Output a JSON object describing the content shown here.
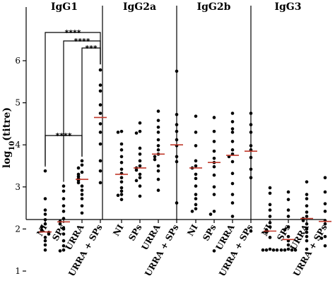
{
  "chart_data": {
    "type": "scatter",
    "ylabel": "log10(titre)",
    "ylabel_main": "log",
    "ylabel_sub": "10",
    "ylabel_rest": "(titre)",
    "ylim": [
      1,
      6
    ],
    "yticks": [
      "1",
      "2",
      "3",
      "4",
      "5",
      "6"
    ],
    "median_color": "#c0392b",
    "panels": [
      {
        "title": "IgG1",
        "categories": [
          "NI",
          "SPs",
          "URRA",
          "URRA + SPs"
        ],
        "series": [
          {
            "values": [
              3.38,
              2.72,
              2.45,
              2.35,
              2.22,
              2.12,
              2.05,
              1.98,
              1.95,
              1.92,
              1.88,
              1.8,
              1.72,
              1.62,
              1.5
            ],
            "median": 1.93
          },
          {
            "values": [
              3.02,
              2.9,
              2.72,
              2.55,
              2.42,
              2.25,
              2.18,
              2.12,
              2.0,
              1.88,
              1.72,
              1.6,
              1.5,
              1.48
            ],
            "median": 2.17
          },
          {
            "values": [
              3.62,
              3.52,
              3.45,
              3.35,
              3.3,
              3.25,
              3.2,
              3.15,
              3.1,
              3.02,
              2.92,
              2.82,
              2.72,
              2.55,
              2.38
            ],
            "median": 3.18
          },
          {
            "values": [
              5.78,
              5.42,
              5.28,
              4.95,
              4.75,
              4.5,
              4.3,
              4.02,
              3.62,
              3.38,
              3.1
            ],
            "median": 4.65
          }
        ],
        "comparisons": [
          {
            "from": 0,
            "to": 3,
            "label": "****"
          },
          {
            "from": 1,
            "to": 3,
            "label": "****"
          },
          {
            "from": 2,
            "to": 3,
            "label": "***"
          },
          {
            "from": 0,
            "to": 2,
            "label": "****"
          }
        ]
      },
      {
        "title": "IgG2a",
        "categories": [
          "NI",
          "SPs",
          "URRA",
          "URRA + SPs"
        ],
        "series": [
          {
            "values": [
              4.32,
              4.3,
              4.02,
              3.88,
              3.72,
              3.58,
              3.42,
              3.32,
              3.22,
              3.12,
              2.98,
              2.9,
              2.82,
              2.8,
              2.7
            ],
            "median": 3.3
          },
          {
            "values": [
              4.52,
              4.32,
              4.28,
              3.92,
              3.78,
              3.62,
              3.5,
              3.45,
              3.4,
              3.3,
              3.22,
              3.15,
              3.02,
              2.78
            ],
            "median": 3.45
          },
          {
            "values": [
              4.8,
              4.58,
              4.42,
              4.3,
              4.12,
              3.98,
              3.88,
              3.78,
              3.72,
              3.65,
              3.5,
              3.38,
              3.18,
              2.92
            ],
            "median": 3.78
          },
          {
            "values": [
              5.75,
              4.72,
              4.48,
              4.32,
              4.12,
              3.98,
              3.72,
              3.6,
              2.62
            ],
            "median": 4.0
          }
        ]
      },
      {
        "title": "IgG2b",
        "categories": [
          "NI",
          "SPs",
          "URRA",
          "URRA + SPs"
        ],
        "series": [
          {
            "values": [
              4.68,
              4.3,
              3.98,
              3.62,
              3.5,
              3.45,
              3.3,
              3.2,
              3.02,
              2.82,
              2.72,
              2.58,
              2.48,
              2.42
            ],
            "median": 3.45
          },
          {
            "values": [
              4.65,
              4.32,
              4.08,
              3.85,
              3.68,
              3.58,
              3.48,
              3.28,
              3.0,
              2.82,
              2.42,
              2.35,
              1.48
            ],
            "median": 3.58
          },
          {
            "values": [
              4.75,
              4.55,
              4.38,
              4.3,
              4.08,
              3.88,
              3.78,
              3.72,
              3.6,
              3.32,
              3.08,
              2.82,
              2.62,
              2.3
            ],
            "median": 3.75
          },
          {
            "values": [
              4.75,
              4.48,
              4.3,
              3.98,
              3.88,
              3.7,
              3.42,
              3.22,
              1.95
            ],
            "median": 3.85
          }
        ]
      },
      {
        "title": "IgG3",
        "categories": [
          "NI",
          "SPs",
          "URRA",
          "URRA + SPs"
        ],
        "series": [
          {
            "values": [
              2.98,
              2.85,
              2.58,
              2.45,
              2.3,
              2.15,
              2.05,
              1.98,
              1.92,
              1.8,
              1.52,
              1.5,
              1.5,
              1.5,
              1.5
            ],
            "median": 1.95
          },
          {
            "values": [
              2.88,
              2.7,
              2.45,
              2.3,
              2.05,
              1.98,
              1.82,
              1.72,
              1.62,
              1.52,
              1.5,
              1.5,
              1.5,
              1.5
            ],
            "median": 1.75
          },
          {
            "values": [
              3.12,
              2.82,
              2.72,
              2.55,
              2.4,
              2.3,
              2.25,
              2.2,
              2.12,
              2.0,
              1.92,
              1.82,
              1.72,
              1.52
            ],
            "median": 2.25
          },
          {
            "values": [
              3.22,
              2.88,
              2.6,
              2.42,
              2.2,
              2.12,
              1.82,
              1.78,
              1.6
            ],
            "median": 2.18
          }
        ]
      }
    ]
  }
}
